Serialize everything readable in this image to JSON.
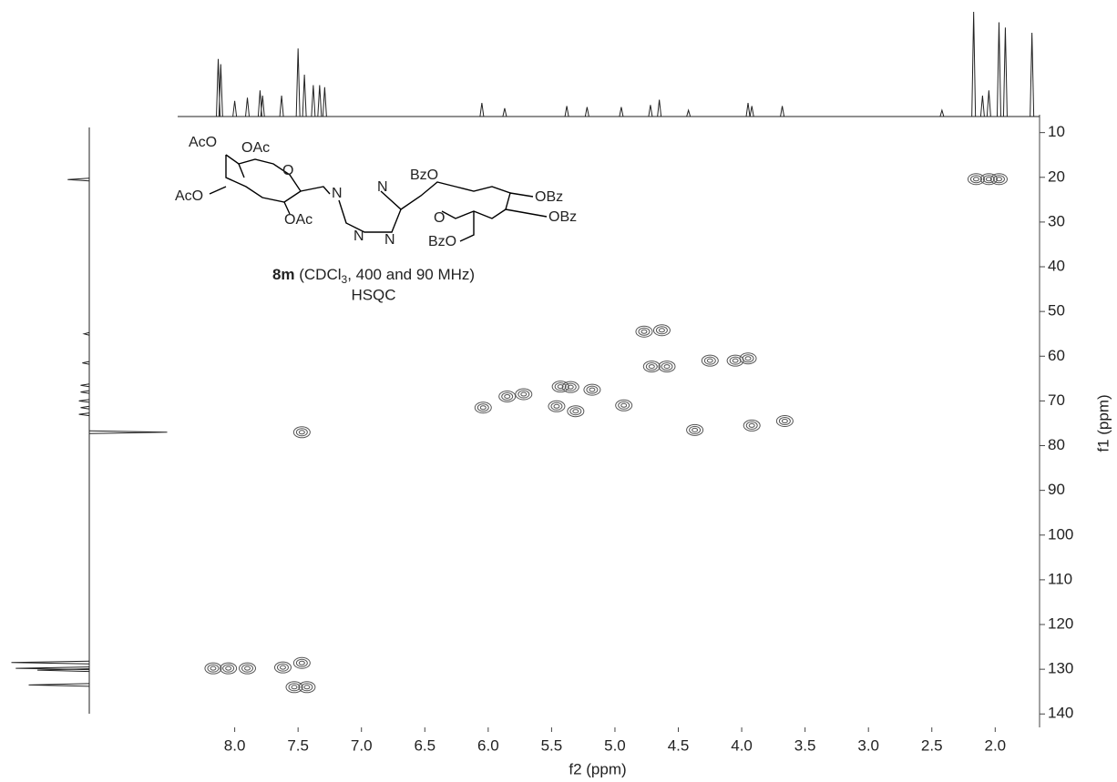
{
  "chart_data": {
    "type": "scatter",
    "x_label": "f2 (ppm)",
    "y_label": "f1 (ppm)",
    "annotation_parts": [
      "8m",
      " (CDCl",
      "3",
      ", 400 and 90 MHz)"
    ],
    "annotation_line2": "HSQC",
    "structure_labels": [
      "AcO",
      "OAc",
      "O",
      "AcO",
      "OAc",
      "N",
      "N",
      "N",
      "N",
      "BzO",
      "OBz",
      "OBz",
      "O",
      "BzO"
    ],
    "x": [
      2.15,
      2.05,
      1.97,
      4.77,
      4.63,
      4.71,
      4.59,
      4.05,
      3.95,
      6.04,
      5.85,
      5.72,
      5.43,
      5.35,
      5.18,
      4.93,
      5.31,
      5.46,
      4.37,
      3.92,
      3.66,
      4.25,
      7.47,
      8.17,
      8.05,
      7.9,
      7.47,
      7.62,
      7.53,
      7.43
    ],
    "values": [
      20.4,
      20.4,
      20.4,
      54.5,
      54.2,
      62.3,
      62.3,
      61,
      60.5,
      71.5,
      69,
      68.5,
      66.8,
      66.9,
      67.5,
      71,
      72.3,
      71.2,
      76.5,
      75.5,
      74.5,
      61,
      77,
      129.8,
      129.8,
      129.8,
      128.6,
      129.6,
      134,
      134
    ],
    "color": "#555555",
    "xlim": [
      8.45,
      1.65
    ],
    "ylim": [
      6,
      143
    ],
    "xticks": [
      {
        "value": 8,
        "label": "8.0"
      },
      7.5,
      {
        "value": 7,
        "label": "7.0"
      },
      6.5,
      {
        "value": 6,
        "label": "6.0"
      },
      5.5,
      {
        "value": 5,
        "label": "5.0"
      },
      4.5,
      {
        "value": 4,
        "label": "4.0"
      },
      3.5,
      {
        "value": 3,
        "label": "3.0"
      },
      2.5,
      {
        "value": 2,
        "label": "2.0"
      }
    ],
    "yticks": [
      10,
      20,
      30,
      40,
      50,
      60,
      70,
      80,
      90,
      100,
      110,
      120,
      130,
      140
    ],
    "projection_f2": {
      "x": [
        8.13,
        8.11,
        8.0,
        7.9,
        7.8,
        7.78,
        7.63,
        7.5,
        7.45,
        7.38,
        7.33,
        7.29,
        6.05,
        5.87,
        5.38,
        5.22,
        4.95,
        4.72,
        4.65,
        4.42,
        3.95,
        3.92,
        3.68,
        2.42,
        2.17,
        2.1,
        2.05,
        1.97,
        1.92,
        1.71
      ],
      "intensity": [
        55,
        50,
        15,
        18,
        25,
        20,
        20,
        65,
        40,
        30,
        30,
        28,
        13,
        8,
        10,
        9,
        9,
        11,
        16,
        6,
        13,
        10,
        10,
        6,
        100,
        20,
        25,
        90,
        85,
        80
      ]
    },
    "projection_f1": {
      "y": [
        20.5,
        55,
        61.5,
        66.5,
        68,
        70,
        71.5,
        73,
        77,
        128.5,
        129.8,
        130.2,
        133.5
      ],
      "intensity": [
        25,
        6,
        8,
        10,
        10,
        12,
        10,
        12,
        -90,
        90,
        85,
        60,
        70
      ]
    }
  }
}
